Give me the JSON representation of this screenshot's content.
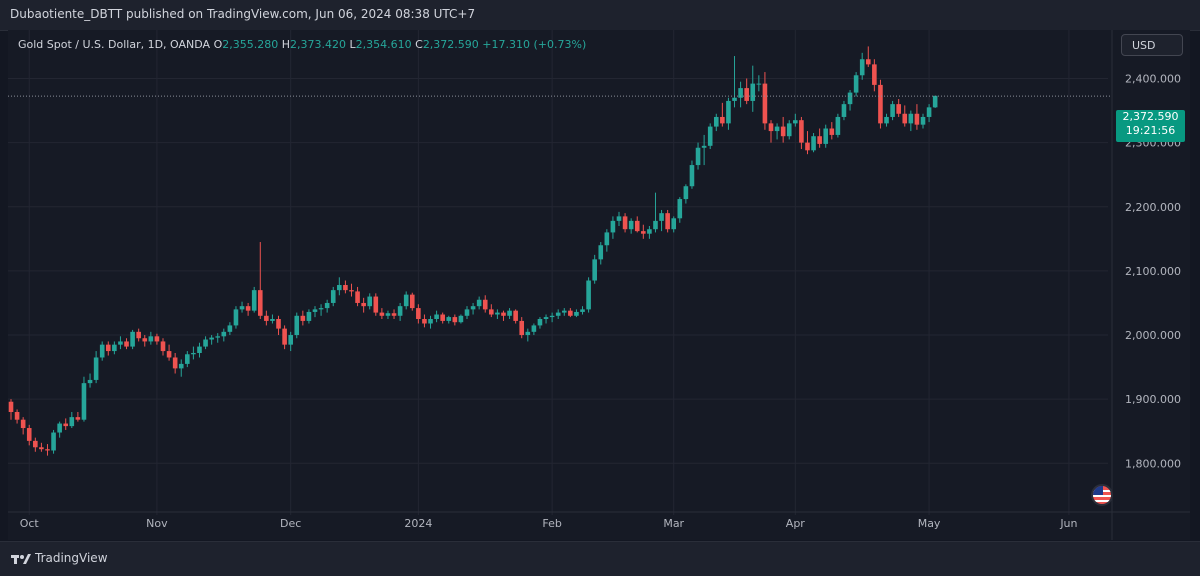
{
  "header": {
    "published_text": "Dubaotiente_DBTT published on TradingView.com, Jun 06, 2024 08:38 UTC+7"
  },
  "legend": {
    "symbol": "Gold Spot / U.S. Dollar, 1D, OANDA",
    "o_label": "O",
    "o_value": "2,355.280",
    "h_label": "H",
    "h_value": "2,373.420",
    "l_label": "L",
    "l_value": "2,354.610",
    "c_label": "C",
    "c_value": "2,372.590",
    "change": "+17.310 (+0.73%)"
  },
  "currency": "USD",
  "last_price": {
    "price": "2,372.590",
    "countdown": "19:21:56"
  },
  "footer": {
    "brand": "TradingView"
  },
  "colors": {
    "up": "#26a69a",
    "down": "#ef5350",
    "background": "#161a25",
    "accent": "#089981"
  },
  "icons": {
    "flag": "us-flag-icon",
    "logo": "tradingview-logo-icon"
  },
  "chart_data": {
    "type": "candlestick",
    "title": "Gold Spot / U.S. Dollar, 1D, OANDA",
    "ylim": [
      1735,
      2460
    ],
    "y_ticks": [
      "1,800.000",
      "1,900.000",
      "2,000.000",
      "2,100.000",
      "2,200.000",
      "2,300.000",
      "2,400.000"
    ],
    "y_tick_values": [
      1800,
      1900,
      2000,
      2100,
      2200,
      2300,
      2400
    ],
    "x_ticks": [
      "Oct",
      "Nov",
      "Dec",
      "2024",
      "Feb",
      "Mar",
      "Apr",
      "May",
      "Jun"
    ],
    "x_tick_bar_index": [
      3,
      24,
      46,
      67,
      89,
      109,
      129,
      151,
      174
    ],
    "grid": true,
    "last_price": 2372.59,
    "ohlc": [
      [
        1896,
        1900,
        1868,
        1880
      ],
      [
        1880,
        1884,
        1862,
        1868
      ],
      [
        1868,
        1872,
        1845,
        1855
      ],
      [
        1855,
        1860,
        1828,
        1835
      ],
      [
        1835,
        1840,
        1818,
        1825
      ],
      [
        1825,
        1832,
        1818,
        1822
      ],
      [
        1822,
        1830,
        1812,
        1820
      ],
      [
        1820,
        1852,
        1815,
        1848
      ],
      [
        1848,
        1865,
        1840,
        1862
      ],
      [
        1862,
        1870,
        1852,
        1858
      ],
      [
        1858,
        1880,
        1855,
        1872
      ],
      [
        1872,
        1880,
        1865,
        1868
      ],
      [
        1868,
        1935,
        1865,
        1925
      ],
      [
        1925,
        1940,
        1918,
        1930
      ],
      [
        1930,
        1975,
        1925,
        1965
      ],
      [
        1965,
        1990,
        1960,
        1985
      ],
      [
        1985,
        1990,
        1968,
        1975
      ],
      [
        1975,
        1990,
        1970,
        1985
      ],
      [
        1985,
        1998,
        1978,
        1990
      ],
      [
        1990,
        1995,
        1978,
        1982
      ],
      [
        1982,
        2008,
        1978,
        2005
      ],
      [
        2005,
        2010,
        1990,
        1995
      ],
      [
        1995,
        2000,
        1982,
        1990
      ],
      [
        1990,
        2005,
        1985,
        1998
      ],
      [
        1998,
        2002,
        1985,
        1990
      ],
      [
        1990,
        1995,
        1968,
        1975
      ],
      [
        1975,
        1985,
        1960,
        1965
      ],
      [
        1965,
        1972,
        1940,
        1948
      ],
      [
        1948,
        1962,
        1935,
        1955
      ],
      [
        1955,
        1975,
        1950,
        1970
      ],
      [
        1970,
        1982,
        1962,
        1972
      ],
      [
        1972,
        1988,
        1965,
        1982
      ],
      [
        1982,
        1998,
        1978,
        1993
      ],
      [
        1993,
        2000,
        1985,
        1996
      ],
      [
        1996,
        2003,
        1988,
        1998
      ],
      [
        1998,
        2010,
        1990,
        2005
      ],
      [
        2005,
        2020,
        2000,
        2015
      ],
      [
        2015,
        2045,
        2010,
        2040
      ],
      [
        2040,
        2052,
        2035,
        2045
      ],
      [
        2045,
        2050,
        2030,
        2038
      ],
      [
        2038,
        2075,
        2035,
        2070
      ],
      [
        2070,
        2145,
        2025,
        2030
      ],
      [
        2030,
        2038,
        2015,
        2022
      ],
      [
        2022,
        2032,
        2018,
        2025
      ],
      [
        2025,
        2030,
        2000,
        2010
      ],
      [
        2010,
        2015,
        1978,
        1985
      ],
      [
        1985,
        2005,
        1975,
        2000
      ],
      [
        2000,
        2035,
        1995,
        2030
      ],
      [
        2030,
        2038,
        2015,
        2022
      ],
      [
        2022,
        2040,
        2018,
        2036
      ],
      [
        2036,
        2045,
        2028,
        2040
      ],
      [
        2040,
        2048,
        2030,
        2042
      ],
      [
        2042,
        2055,
        2035,
        2050
      ],
      [
        2050,
        2075,
        2045,
        2070
      ],
      [
        2070,
        2090,
        2062,
        2078
      ],
      [
        2078,
        2085,
        2065,
        2070
      ],
      [
        2070,
        2080,
        2060,
        2068
      ],
      [
        2068,
        2075,
        2045,
        2050
      ],
      [
        2050,
        2058,
        2035,
        2045
      ],
      [
        2045,
        2065,
        2040,
        2060
      ],
      [
        2060,
        2065,
        2030,
        2035
      ],
      [
        2035,
        2042,
        2025,
        2030
      ],
      [
        2030,
        2038,
        2025,
        2034
      ],
      [
        2034,
        2040,
        2025,
        2030
      ],
      [
        2030,
        2050,
        2022,
        2045
      ],
      [
        2045,
        2068,
        2040,
        2063
      ],
      [
        2063,
        2066,
        2038,
        2042
      ],
      [
        2042,
        2048,
        2018,
        2025
      ],
      [
        2025,
        2032,
        2012,
        2018
      ],
      [
        2018,
        2030,
        2010,
        2025
      ],
      [
        2025,
        2038,
        2020,
        2032
      ],
      [
        2032,
        2035,
        2018,
        2022
      ],
      [
        2022,
        2030,
        2018,
        2028
      ],
      [
        2028,
        2032,
        2015,
        2020
      ],
      [
        2020,
        2032,
        2018,
        2030
      ],
      [
        2030,
        2045,
        2025,
        2040
      ],
      [
        2040,
        2050,
        2032,
        2045
      ],
      [
        2045,
        2060,
        2040,
        2055
      ],
      [
        2055,
        2062,
        2035,
        2040
      ],
      [
        2040,
        2048,
        2028,
        2032
      ],
      [
        2032,
        2040,
        2025,
        2035
      ],
      [
        2035,
        2038,
        2022,
        2030
      ],
      [
        2030,
        2042,
        2025,
        2038
      ],
      [
        2038,
        2040,
        2018,
        2022
      ],
      [
        2022,
        2028,
        1995,
        2000
      ],
      [
        2000,
        2010,
        1990,
        2005
      ],
      [
        2005,
        2018,
        2000,
        2015
      ],
      [
        2015,
        2028,
        2010,
        2025
      ],
      [
        2025,
        2032,
        2018,
        2028
      ],
      [
        2028,
        2035,
        2020,
        2030
      ],
      [
        2030,
        2040,
        2025,
        2035
      ],
      [
        2035,
        2042,
        2030,
        2038
      ],
      [
        2038,
        2042,
        2028,
        2030
      ],
      [
        2030,
        2040,
        2028,
        2036
      ],
      [
        2036,
        2045,
        2032,
        2040
      ],
      [
        2040,
        2090,
        2035,
        2085
      ],
      [
        2085,
        2125,
        2080,
        2118
      ],
      [
        2118,
        2145,
        2110,
        2140
      ],
      [
        2140,
        2165,
        2130,
        2160
      ],
      [
        2160,
        2185,
        2150,
        2178
      ],
      [
        2178,
        2192,
        2170,
        2185
      ],
      [
        2185,
        2190,
        2160,
        2165
      ],
      [
        2165,
        2182,
        2158,
        2178
      ],
      [
        2178,
        2185,
        2160,
        2162
      ],
      [
        2162,
        2172,
        2150,
        2158
      ],
      [
        2158,
        2170,
        2150,
        2165
      ],
      [
        2165,
        2222,
        2160,
        2178
      ],
      [
        2178,
        2195,
        2162,
        2190
      ],
      [
        2190,
        2195,
        2160,
        2165
      ],
      [
        2165,
        2185,
        2160,
        2182
      ],
      [
        2182,
        2215,
        2175,
        2212
      ],
      [
        2212,
        2235,
        2205,
        2232
      ],
      [
        2232,
        2272,
        2228,
        2265
      ],
      [
        2265,
        2300,
        2258,
        2292
      ],
      [
        2292,
        2312,
        2265,
        2295
      ],
      [
        2295,
        2330,
        2290,
        2325
      ],
      [
        2325,
        2345,
        2318,
        2340
      ],
      [
        2340,
        2362,
        2325,
        2330
      ],
      [
        2330,
        2370,
        2320,
        2365
      ],
      [
        2365,
        2435,
        2355,
        2370
      ],
      [
        2370,
        2395,
        2355,
        2385
      ],
      [
        2385,
        2400,
        2360,
        2365
      ],
      [
        2365,
        2420,
        2348,
        2392
      ],
      [
        2392,
        2405,
        2380,
        2392
      ],
      [
        2392,
        2410,
        2320,
        2330
      ],
      [
        2330,
        2335,
        2300,
        2318
      ],
      [
        2318,
        2330,
        2305,
        2325
      ],
      [
        2325,
        2340,
        2300,
        2310
      ],
      [
        2310,
        2335,
        2305,
        2330
      ],
      [
        2330,
        2345,
        2325,
        2335
      ],
      [
        2335,
        2340,
        2290,
        2300
      ],
      [
        2300,
        2318,
        2282,
        2288
      ],
      [
        2288,
        2315,
        2285,
        2310
      ],
      [
        2310,
        2322,
        2292,
        2298
      ],
      [
        2298,
        2328,
        2292,
        2322
      ],
      [
        2322,
        2332,
        2305,
        2312
      ],
      [
        2312,
        2345,
        2308,
        2340
      ],
      [
        2340,
        2365,
        2335,
        2360
      ],
      [
        2360,
        2382,
        2350,
        2378
      ],
      [
        2378,
        2410,
        2372,
        2405
      ],
      [
        2405,
        2440,
        2398,
        2430
      ],
      [
        2430,
        2450,
        2418,
        2422
      ],
      [
        2422,
        2430,
        2380,
        2390
      ],
      [
        2390,
        2398,
        2322,
        2330
      ],
      [
        2330,
        2345,
        2325,
        2340
      ],
      [
        2340,
        2365,
        2335,
        2360
      ],
      [
        2360,
        2368,
        2340,
        2345
      ],
      [
        2345,
        2358,
        2325,
        2330
      ],
      [
        2330,
        2350,
        2318,
        2345
      ],
      [
        2345,
        2360,
        2320,
        2328
      ],
      [
        2328,
        2345,
        2322,
        2340
      ],
      [
        2340,
        2360,
        2332,
        2355
      ],
      [
        2355,
        2373,
        2354,
        2373
      ]
    ]
  }
}
